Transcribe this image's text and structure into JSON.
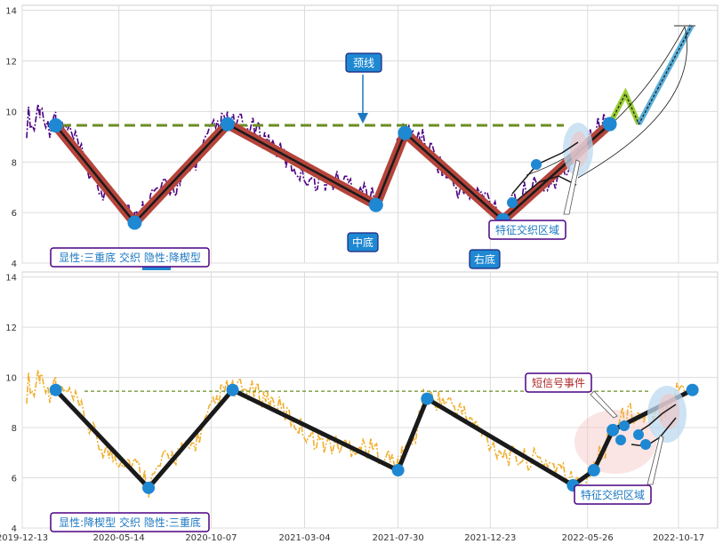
{
  "chart_data": [
    {
      "type": "line",
      "panel": "top",
      "ylim": [
        4,
        14.2
      ],
      "yticks": [
        4,
        6,
        8,
        10,
        12,
        14
      ],
      "grid": true,
      "neckline": 9.45,
      "colors": {
        "price": "#4b0082",
        "zigzag": "#c0392b",
        "neck": "#6b8e23",
        "node": "#1e88d2"
      },
      "zigzag": [
        {
          "x": "2020-02-04",
          "y": 9.45
        },
        {
          "x": "2020-06-08",
          "y": 5.6
        },
        {
          "x": "2020-11-02",
          "y": 9.5
        },
        {
          "x": "2021-06-25",
          "y": 6.3
        },
        {
          "x": "2021-08-10",
          "y": 9.15
        },
        {
          "x": "2022-01-12",
          "y": 5.7
        },
        {
          "x": "2022-06-30",
          "y": 9.5
        }
      ],
      "projection": [
        {
          "x": "2022-06-30",
          "y": 9.5
        },
        {
          "x": "2022-07-25",
          "y": 10.7
        },
        {
          "x": "2022-08-15",
          "y": 9.5
        },
        {
          "x": "2022-11-07",
          "y": 13.4
        }
      ],
      "annotations": [
        {
          "id": "neck",
          "text": "颈线"
        },
        {
          "id": "mid",
          "text": "中底"
        },
        {
          "id": "right",
          "text": "右底"
        },
        {
          "id": "zone",
          "text": "特征交织区域"
        },
        {
          "id": "summary",
          "text": "显性:三重底 交织 隐性:降楔型"
        }
      ]
    },
    {
      "type": "line",
      "panel": "bottom",
      "ylim": [
        4,
        14.2
      ],
      "yticks": [
        4,
        6,
        8,
        10,
        12,
        14
      ],
      "grid": true,
      "neckline": 9.45,
      "colors": {
        "price": "#f0b030",
        "zigzag": "#1a1a1a",
        "neck": "#6b8e23",
        "node": "#1e88d2"
      },
      "xticks": [
        "2019-12-13",
        "2020-05-14",
        "2020-10-07",
        "2021-03-04",
        "2021-07-30",
        "2021-12-23",
        "2022-05-26",
        "2022-10-17"
      ],
      "zigzag": [
        {
          "x": "2020-02-04",
          "y": 9.5
        },
        {
          "x": "2020-06-30",
          "y": 5.6
        },
        {
          "x": "2020-11-10",
          "y": 9.5
        },
        {
          "x": "2021-07-30",
          "y": 6.3
        },
        {
          "x": "2021-09-14",
          "y": 9.15
        },
        {
          "x": "2022-05-03",
          "y": 5.7
        },
        {
          "x": "2022-06-05",
          "y": 6.3
        },
        {
          "x": "2022-07-05",
          "y": 7.9
        },
        {
          "x": "2022-11-08",
          "y": 9.5
        }
      ],
      "annotations": [
        {
          "id": "signal",
          "text": "短信号事件"
        },
        {
          "id": "zone",
          "text": "特征交织区域"
        },
        {
          "id": "summary",
          "text": "显性:降楔型 交织 隐性:三重底"
        }
      ]
    }
  ]
}
